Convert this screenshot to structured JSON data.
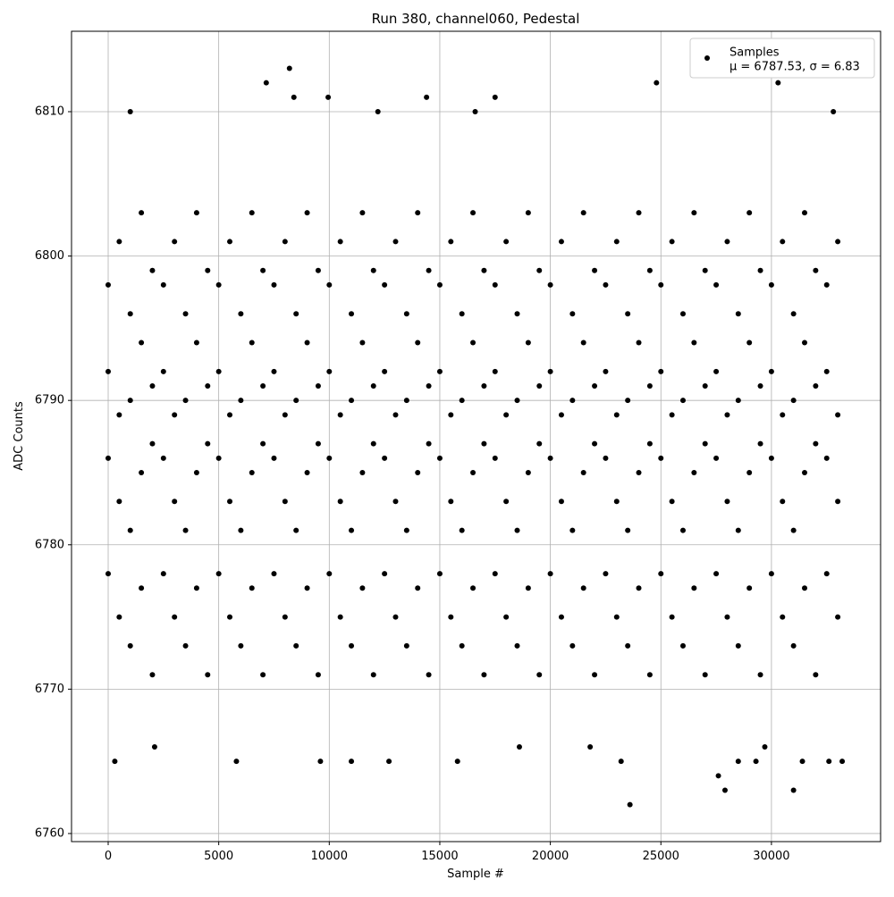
{
  "chart_data": {
    "type": "scatter",
    "title": "Run 380, channel060, Pedestal",
    "xlabel": "Sample #",
    "ylabel": "ADC Counts",
    "xlim": [
      -1658,
      34937
    ],
    "ylim": [
      6759.44,
      6815.57
    ],
    "xticks": [
      0,
      5000,
      10000,
      15000,
      20000,
      25000,
      30000
    ],
    "yticks": [
      6760,
      6770,
      6780,
      6790,
      6800,
      6810
    ],
    "grid": true,
    "legend": "upper right",
    "series": [
      {
        "name": "Samples",
        "label2": "μ = 6787.53, σ = 6.83",
        "color": "#000000",
        "x": [
          0,
          500,
          1000,
          1500,
          2000,
          2500,
          3000,
          3500,
          4000,
          4500,
          5000,
          5500,
          6000,
          6500,
          7000,
          7500,
          8000,
          8500,
          9000,
          9500,
          10000,
          10500,
          11000,
          11500,
          12000,
          12500,
          13000,
          13500,
          14000,
          14500,
          15000,
          15500,
          16000,
          16500,
          17000,
          17500,
          18000,
          18500,
          19000,
          19500,
          20000,
          20500,
          21000,
          21500,
          22000,
          22500,
          23000,
          23500,
          24000,
          24500,
          25000,
          25500,
          26000,
          26500,
          27000,
          27500,
          28000,
          28500,
          29000,
          29500,
          30000,
          30500,
          31000,
          31500,
          32000,
          32500,
          33000,
          0,
          500,
          1000,
          1500,
          2000,
          2500,
          3000,
          3500,
          4000,
          4500,
          5000,
          5500,
          6000,
          6500,
          7000,
          7500,
          8000,
          8500,
          9000,
          9500,
          10000,
          10500,
          11000,
          11500,
          12000,
          12500,
          13000,
          13500,
          14000,
          14500,
          15000,
          15500,
          16000,
          16500,
          17000,
          17500,
          18000,
          18500,
          19000,
          19500,
          20000,
          20500,
          21000,
          21500,
          22000,
          22500,
          23000,
          23500,
          24000,
          24500,
          25000,
          25500,
          26000,
          26500,
          27000,
          27500,
          28000,
          28500,
          29000,
          29500,
          30000,
          30500,
          31000,
          31500,
          32000,
          32500,
          33000,
          0,
          500,
          1000,
          1500,
          2000,
          2500,
          3000,
          3500,
          4000,
          4500,
          5000,
          5500,
          6000,
          6500,
          7000,
          7500,
          8000,
          8500,
          9000,
          9500,
          10000,
          10500,
          11000,
          11500,
          12000,
          12500,
          13000,
          13500,
          14000,
          14500,
          15000,
          15500,
          16000,
          16500,
          17000,
          17500,
          18000,
          18500,
          19000,
          19500,
          20000,
          20500,
          21000,
          21500,
          22000,
          22500,
          23000,
          23500,
          24000,
          24500,
          25000,
          25500,
          26000,
          26500,
          27000,
          27500,
          28000,
          28500,
          29000,
          29500,
          30000,
          30500,
          31000,
          31500,
          32000,
          32500,
          33000,
          0,
          500,
          1000,
          1500,
          2000,
          2500,
          3000,
          3500,
          4000,
          4500,
          5000,
          5500,
          6000,
          6500,
          7000,
          7500,
          8000,
          8500,
          9000,
          9500,
          10000,
          10500,
          11000,
          11500,
          12000,
          12500,
          13000,
          13500,
          14000,
          14500,
          15000,
          15500,
          16000,
          16500,
          17000,
          17500,
          18000,
          18500,
          19000,
          19500,
          20000,
          20500,
          21000,
          21500,
          22000,
          22500,
          23000,
          23500,
          24000,
          24500,
          25000,
          25500,
          26000,
          26500,
          27000,
          27500,
          28000,
          28500,
          29000,
          29500,
          30000,
          30500,
          31000,
          31500,
          32000,
          32500,
          33000,
          1000,
          7150,
          8200,
          8400,
          9950,
          12200,
          14400,
          16600,
          17500,
          24800,
          30300,
          32800,
          23600,
          27900,
          31000,
          27600,
          300,
          5800,
          9600,
          11000,
          12700,
          15800,
          23200,
          28500,
          29300,
          31400,
          32600,
          33200,
          2100,
          18600,
          21800,
          29700
        ],
        "values": [
          6778,
          6775,
          6773,
          6777,
          6771,
          6778,
          6775,
          6773,
          6777,
          6771,
          6778,
          6775,
          6773,
          6777,
          6771,
          6778,
          6775,
          6773,
          6777,
          6771,
          6778,
          6775,
          6773,
          6777,
          6771,
          6778,
          6775,
          6773,
          6777,
          6771,
          6778,
          6775,
          6773,
          6777,
          6771,
          6778,
          6775,
          6773,
          6777,
          6771,
          6778,
          6775,
          6773,
          6777,
          6771,
          6778,
          6775,
          6773,
          6777,
          6771,
          6778,
          6775,
          6773,
          6777,
          6771,
          6778,
          6775,
          6773,
          6777,
          6771,
          6778,
          6775,
          6773,
          6777,
          6771,
          6778,
          6775,
          6786,
          6783,
          6781,
          6785,
          6787,
          6786,
          6783,
          6781,
          6785,
          6787,
          6786,
          6783,
          6781,
          6785,
          6787,
          6786,
          6783,
          6781,
          6785,
          6787,
          6786,
          6783,
          6781,
          6785,
          6787,
          6786,
          6783,
          6781,
          6785,
          6787,
          6786,
          6783,
          6781,
          6785,
          6787,
          6786,
          6783,
          6781,
          6785,
          6787,
          6786,
          6783,
          6781,
          6785,
          6787,
          6786,
          6783,
          6781,
          6785,
          6787,
          6786,
          6783,
          6781,
          6785,
          6787,
          6786,
          6783,
          6781,
          6785,
          6787,
          6786,
          6783,
          6781,
          6785,
          6787,
          6786,
          6783,
          6792,
          6789,
          6790,
          6794,
          6791,
          6792,
          6789,
          6790,
          6794,
          6791,
          6792,
          6789,
          6790,
          6794,
          6791,
          6792,
          6789,
          6790,
          6794,
          6791,
          6792,
          6789,
          6790,
          6794,
          6791,
          6792,
          6789,
          6790,
          6794,
          6791,
          6792,
          6789,
          6790,
          6794,
          6791,
          6792,
          6789,
          6790,
          6794,
          6791,
          6792,
          6789,
          6790,
          6794,
          6791,
          6792,
          6789,
          6790,
          6794,
          6791,
          6792,
          6789,
          6790,
          6794,
          6791,
          6792,
          6789,
          6790,
          6794,
          6791,
          6792,
          6789,
          6790,
          6794,
          6791,
          6792,
          6789,
          6798,
          6801,
          6796,
          6803,
          6799,
          6798,
          6801,
          6796,
          6803,
          6799,
          6798,
          6801,
          6796,
          6803,
          6799,
          6798,
          6801,
          6796,
          6803,
          6799,
          6798,
          6801,
          6796,
          6803,
          6799,
          6798,
          6801,
          6796,
          6803,
          6799,
          6798,
          6801,
          6796,
          6803,
          6799,
          6798,
          6801,
          6796,
          6803,
          6799,
          6798,
          6801,
          6796,
          6803,
          6799,
          6798,
          6801,
          6796,
          6803,
          6799,
          6798,
          6801,
          6796,
          6803,
          6799,
          6798,
          6801,
          6796,
          6803,
          6799,
          6798,
          6801,
          6796,
          6803,
          6799,
          6798,
          6801,
          6810,
          6812,
          6813,
          6811,
          6811,
          6810,
          6811,
          6810,
          6811,
          6812,
          6812,
          6810,
          6762,
          6763,
          6763,
          6764,
          6765,
          6765,
          6765,
          6765,
          6765,
          6765,
          6765,
          6765,
          6765,
          6765,
          6765,
          6765,
          6766,
          6766,
          6766,
          6766
        ]
      }
    ]
  }
}
